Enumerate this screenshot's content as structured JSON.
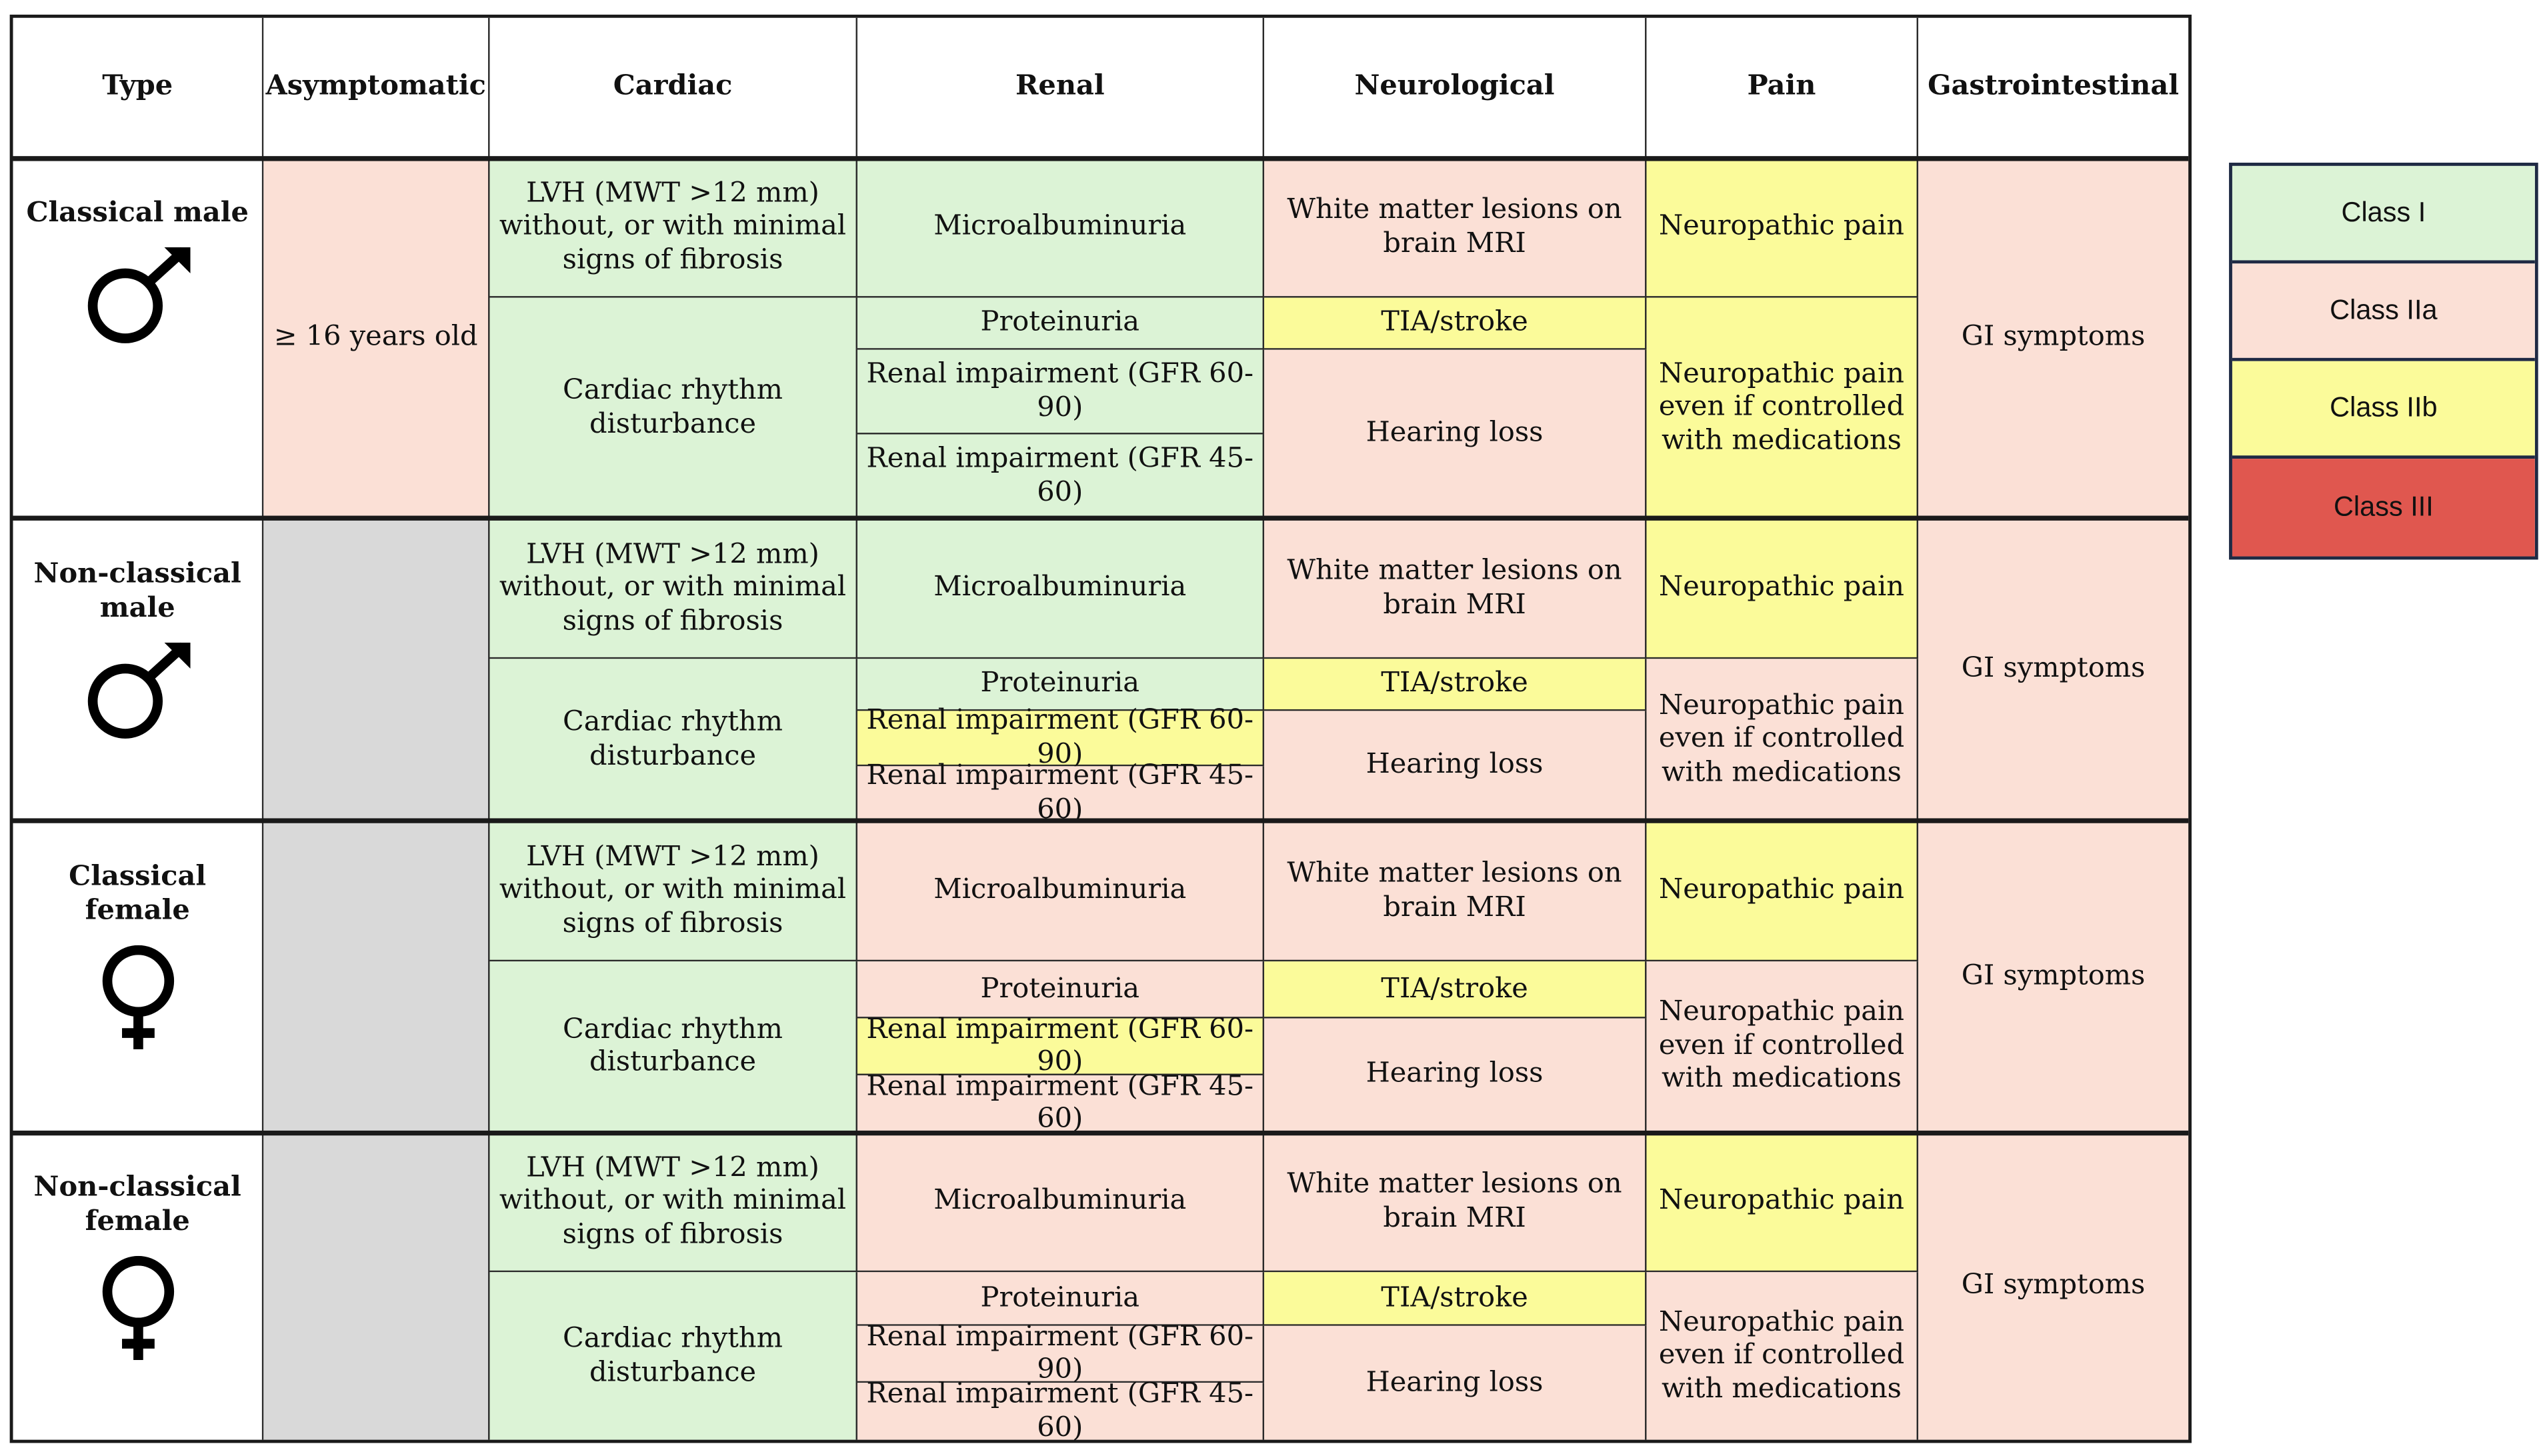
{
  "headers": {
    "type": "Type",
    "asymptomatic": "Asymptomatic",
    "cardiac": "Cardiac",
    "renal": "Renal",
    "neurological": "Neurological",
    "pain": "Pain",
    "gastrointestinal": "Gastrointestinal"
  },
  "groups": [
    {
      "type_label": "Classical male",
      "symbol": "male-symbol-icon",
      "asymptomatic": "≥ 16 years old",
      "lvh": "LVH (MWT >12 mm) without, or with minimal signs of fibrosis",
      "rhythm": "Cardiac rhythm disturbance",
      "microalbuminuria": "Microalbuminuria",
      "proteinuria": "Proteinuria",
      "renal_60_90": "Renal impairment (GFR 60-90)",
      "renal_45_60": "Renal impairment (GFR 45-60)",
      "white_matter": "White matter lesions on brain MRI",
      "tia": "TIA/stroke",
      "hearing": "Hearing loss",
      "neuropathic": "Neuropathic pain",
      "neuropathic_controlled": "Neuropathic pain even if controlled with medications",
      "gi": "GI symptoms"
    },
    {
      "type_label": "Non-classical male",
      "symbol": "male-symbol-icon",
      "asymptomatic": "",
      "lvh": "LVH (MWT >12 mm) without, or with minimal signs of fibrosis",
      "rhythm": "Cardiac rhythm disturbance",
      "microalbuminuria": "Microalbuminuria",
      "proteinuria": "Proteinuria",
      "renal_60_90": "Renal impairment (GFR 60-90)",
      "renal_45_60": "Renal impairment (GFR 45-60)",
      "white_matter": "White matter lesions on brain MRI",
      "tia": "TIA/stroke",
      "hearing": "Hearing loss",
      "neuropathic": "Neuropathic pain",
      "neuropathic_controlled": "Neuropathic pain even if controlled with medications",
      "gi": "GI symptoms"
    },
    {
      "type_label": "Classical female",
      "symbol": "female-symbol-icon",
      "asymptomatic": "",
      "lvh": "LVH (MWT >12 mm) without, or with minimal signs of fibrosis",
      "rhythm": "Cardiac rhythm disturbance",
      "microalbuminuria": "Microalbuminuria",
      "proteinuria": "Proteinuria",
      "renal_60_90": "Renal impairment (GFR 60-90)",
      "renal_45_60": "Renal impairment (GFR 45-60)",
      "white_matter": "White matter lesions on brain MRI",
      "tia": "TIA/stroke",
      "hearing": "Hearing loss",
      "neuropathic": "Neuropathic pain",
      "neuropathic_controlled": "Neuropathic pain even if controlled with medications",
      "gi": "GI symptoms"
    },
    {
      "type_label": "Non-classical female",
      "symbol": "female-symbol-icon",
      "asymptomatic": "",
      "lvh": "LVH (MWT >12 mm) without, or with minimal signs of fibrosis",
      "rhythm": "Cardiac rhythm disturbance",
      "microalbuminuria": "Microalbuminuria",
      "proteinuria": "Proteinuria",
      "renal_60_90": "Renal impairment (GFR 60-90)",
      "renal_45_60": "Renal impairment (GFR 45-60)",
      "white_matter": "White matter lesions on brain MRI",
      "tia": "TIA/stroke",
      "hearing": "Hearing loss",
      "neuropathic": "Neuropathic pain",
      "neuropathic_controlled": "Neuropathic pain even if controlled with medications",
      "gi": "GI symptoms"
    }
  ],
  "legend": [
    {
      "label": "Class I",
      "color": "#dcf3d6"
    },
    {
      "label": "Class IIa",
      "color": "#fbe0d6"
    },
    {
      "label": "Class IIb",
      "color": "#fbfb9a"
    },
    {
      "label": "Class III",
      "color": "#e0574f"
    }
  ],
  "colors": {
    "class_i": "#dcf3d6",
    "class_iia": "#fbe0d6",
    "class_iib": "#fbfb9a",
    "class_iii": "#e0574f",
    "not_applicable": "#d9d9d9",
    "border": "#1a1a1a"
  }
}
